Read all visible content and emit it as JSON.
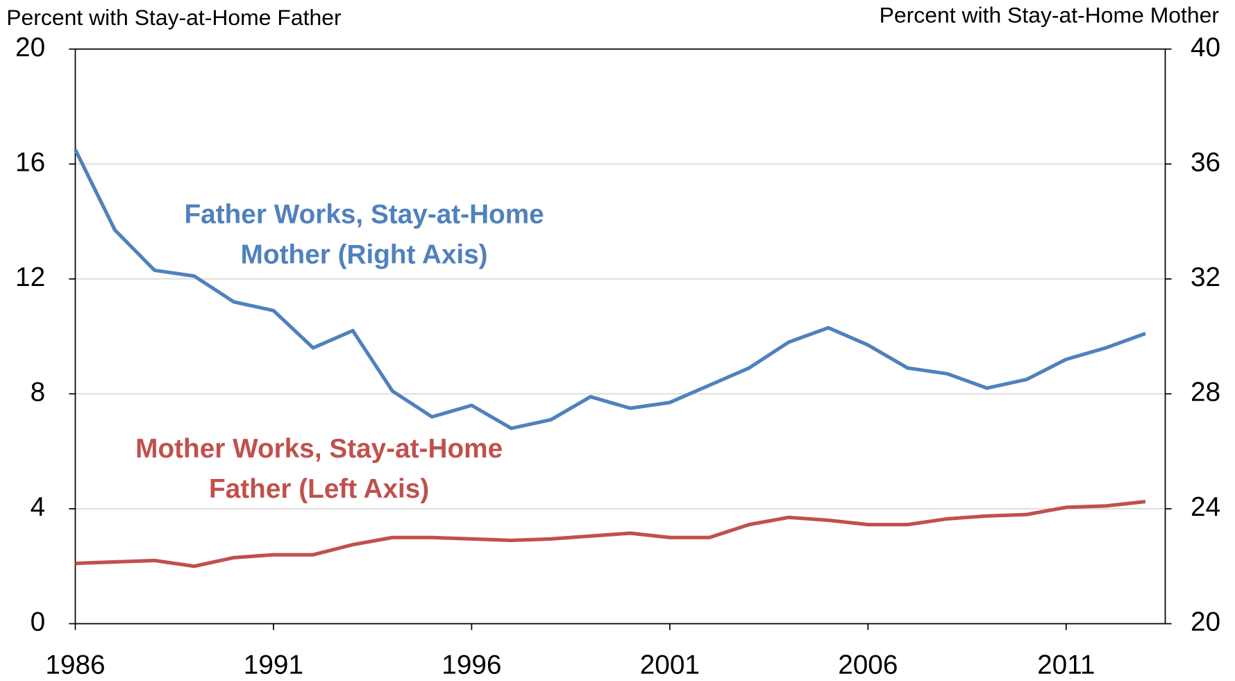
{
  "chart_data": {
    "type": "line",
    "ylabel": "Percent with Stay-at-Home Father",
    "y2label": "Percent with Stay-at-Home Mother",
    "x": [
      1986,
      1987,
      1988,
      1989,
      1990,
      1991,
      1992,
      1993,
      1994,
      1995,
      1996,
      1997,
      1998,
      1999,
      2000,
      2001,
      2002,
      2003,
      2004,
      2005,
      2006,
      2007,
      2008,
      2009,
      2010,
      2011,
      2012,
      2013
    ],
    "xlim": [
      1986,
      2013.5
    ],
    "xticks": [
      1986,
      1991,
      1996,
      2001,
      2006,
      2011
    ],
    "ylim": [
      0,
      20
    ],
    "yticks": [
      0,
      4,
      8,
      12,
      16,
      20
    ],
    "y2lim": [
      20,
      40
    ],
    "y2ticks": [
      20,
      24,
      28,
      32,
      36,
      40
    ],
    "grid": true,
    "series": [
      {
        "name": "Father Works, Stay-at-Home Mother (Right Axis)",
        "axis": "y2",
        "color": "#4f81bd",
        "values": [
          36.5,
          33.7,
          32.3,
          32.1,
          31.2,
          30.9,
          29.6,
          30.2,
          28.1,
          27.2,
          27.6,
          26.8,
          27.1,
          27.9,
          27.5,
          27.7,
          28.3,
          28.9,
          29.8,
          30.3,
          29.7,
          28.9,
          28.7,
          28.2,
          28.5,
          29.2,
          29.6,
          30.1
        ]
      },
      {
        "name": "Mother Works, Stay-at-Home Father (Left Axis)",
        "axis": "y",
        "color": "#c0504d",
        "values": [
          2.1,
          2.15,
          2.2,
          2.0,
          2.3,
          2.4,
          2.4,
          2.75,
          3.0,
          3.0,
          2.95,
          2.9,
          2.95,
          3.05,
          3.15,
          3.0,
          3.0,
          3.45,
          3.7,
          3.6,
          3.45,
          3.45,
          3.65,
          3.75,
          3.8,
          4.05,
          4.1,
          4.25
        ]
      }
    ],
    "annotations": [
      {
        "lines": [
          "Father Works, Stay-at-Home",
          "Mother (Right Axis)"
        ],
        "color": "#4f81bd"
      },
      {
        "lines": [
          "Mother Works, Stay-at-Home",
          "Father (Left Axis)"
        ],
        "color": "#c0504d"
      }
    ]
  }
}
